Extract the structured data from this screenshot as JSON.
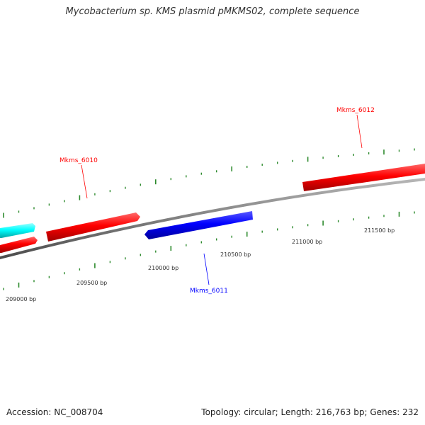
{
  "title": "Mycobacterium sp. KMS plasmid pMKMS02, complete sequence",
  "footer": {
    "accession": "Accession: NC_008704",
    "stats": "Topology: circular; Length: 216,763 bp; Genes: 232"
  },
  "colors": {
    "forward_gene": "#ff0000",
    "reverse_gene": "#0000ff",
    "other_gene": "#00ffff",
    "backbone": "#808080",
    "tick": "#2e8b2e"
  },
  "genes": [
    {
      "name": "Mkms_6010",
      "strand": "forward",
      "color": "#ff0000",
      "labeled": true
    },
    {
      "name": "Mkms_6011",
      "strand": "reverse",
      "color": "#0000ff",
      "labeled": true
    },
    {
      "name": "Mkms_6012",
      "strand": "forward",
      "color": "#ff0000",
      "labeled": true
    }
  ],
  "ticks": [
    {
      "label": "209000 bp"
    },
    {
      "label": "209500 bp"
    },
    {
      "label": "210000 bp"
    },
    {
      "label": "210500 bp"
    },
    {
      "label": "211000 bp"
    },
    {
      "label": "211500 bp"
    }
  ]
}
